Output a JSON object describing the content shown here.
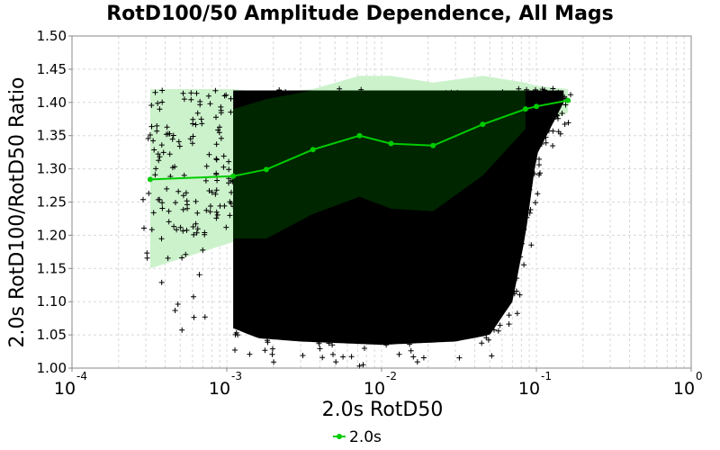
{
  "chart_data": {
    "type": "scatter",
    "title": "RotD100/50 Amplitude Dependence, All Mags",
    "xlabel": "2.0s RotD50",
    "ylabel": "2.0s RotD100/RotD50 Ratio",
    "xscale": "log",
    "xlim": [
      0.0001,
      1
    ],
    "ylim": [
      1.0,
      1.5
    ],
    "x_ticks": [
      {
        "base": "10",
        "exp": "-4",
        "value": 0.0001
      },
      {
        "base": "10",
        "exp": "-3",
        "value": 0.001
      },
      {
        "base": "10",
        "exp": "-2",
        "value": 0.01
      },
      {
        "base": "10",
        "exp": "-1",
        "value": 0.1
      },
      {
        "base": "10",
        "exp": "0",
        "value": 1
      }
    ],
    "y_ticks": [
      "1.00",
      "1.05",
      "1.10",
      "1.15",
      "1.20",
      "1.25",
      "1.30",
      "1.35",
      "1.40",
      "1.45",
      "1.50"
    ],
    "grid": true,
    "legend": {
      "position": "bottom-center",
      "entries": [
        "2.0s"
      ]
    },
    "colors": {
      "line": "#00cc00",
      "outer_band": "#ccf2cc",
      "inner_band": "#002a00",
      "points": "#000000"
    },
    "series": [
      {
        "name": "2.0s",
        "x": [
          0.00032,
          0.0011,
          0.0018,
          0.0036,
          0.0072,
          0.0115,
          0.0215,
          0.045,
          0.085,
          0.1,
          0.16
        ],
        "y": [
          1.284,
          1.289,
          1.299,
          1.329,
          1.35,
          1.338,
          1.335,
          1.367,
          1.39,
          1.394,
          1.403
        ],
        "band_outer": [
          {
            "x": 0.00032,
            "lo": 1.15,
            "hi": 1.42
          },
          {
            "x": 0.0011,
            "lo": 1.19,
            "hi": 1.42
          },
          {
            "x": 0.0018,
            "lo": 1.19,
            "hi": 1.415
          },
          {
            "x": 0.0036,
            "lo": 1.23,
            "hi": 1.42
          },
          {
            "x": 0.0072,
            "lo": 1.26,
            "hi": 1.44
          },
          {
            "x": 0.0115,
            "lo": 1.24,
            "hi": 1.44
          },
          {
            "x": 0.0215,
            "lo": 1.236,
            "hi": 1.43
          },
          {
            "x": 0.045,
            "lo": 1.29,
            "hi": 1.44
          },
          {
            "x": 0.085,
            "lo": 1.355,
            "hi": 1.43
          },
          {
            "x": 0.1,
            "lo": 1.36,
            "hi": 1.425
          },
          {
            "x": 0.16,
            "lo": 1.385,
            "hi": 1.42
          }
        ],
        "band_inner": [
          {
            "x": 0.0011,
            "lo": 1.195,
            "hi": 1.39
          },
          {
            "x": 0.0018,
            "lo": 1.195,
            "hi": 1.405
          },
          {
            "x": 0.0036,
            "lo": 1.232,
            "hi": 1.418
          },
          {
            "x": 0.0072,
            "lo": 1.258,
            "hi": 1.418
          },
          {
            "x": 0.0115,
            "lo": 1.24,
            "hi": 1.418
          },
          {
            "x": 0.0215,
            "lo": 1.236,
            "hi": 1.418
          },
          {
            "x": 0.045,
            "lo": 1.29,
            "hi": 1.418
          },
          {
            "x": 0.085,
            "lo": 1.36,
            "hi": 1.418
          }
        ]
      }
    ],
    "scatter_cloud": {
      "marker": "+",
      "y_max": 1.418,
      "bottom_floor": [
        {
          "x": 0.0011,
          "y": 1.06
        },
        {
          "x": 0.0016,
          "y": 1.045
        },
        {
          "x": 0.003,
          "y": 1.04
        },
        {
          "x": 0.01,
          "y": 1.035
        },
        {
          "x": 0.03,
          "y": 1.04
        },
        {
          "x": 0.05,
          "y": 1.05
        },
        {
          "x": 0.07,
          "y": 1.1
        },
        {
          "x": 0.085,
          "y": 1.2
        },
        {
          "x": 0.1,
          "y": 1.32
        },
        {
          "x": 0.15,
          "y": 1.4
        }
      ]
    }
  }
}
